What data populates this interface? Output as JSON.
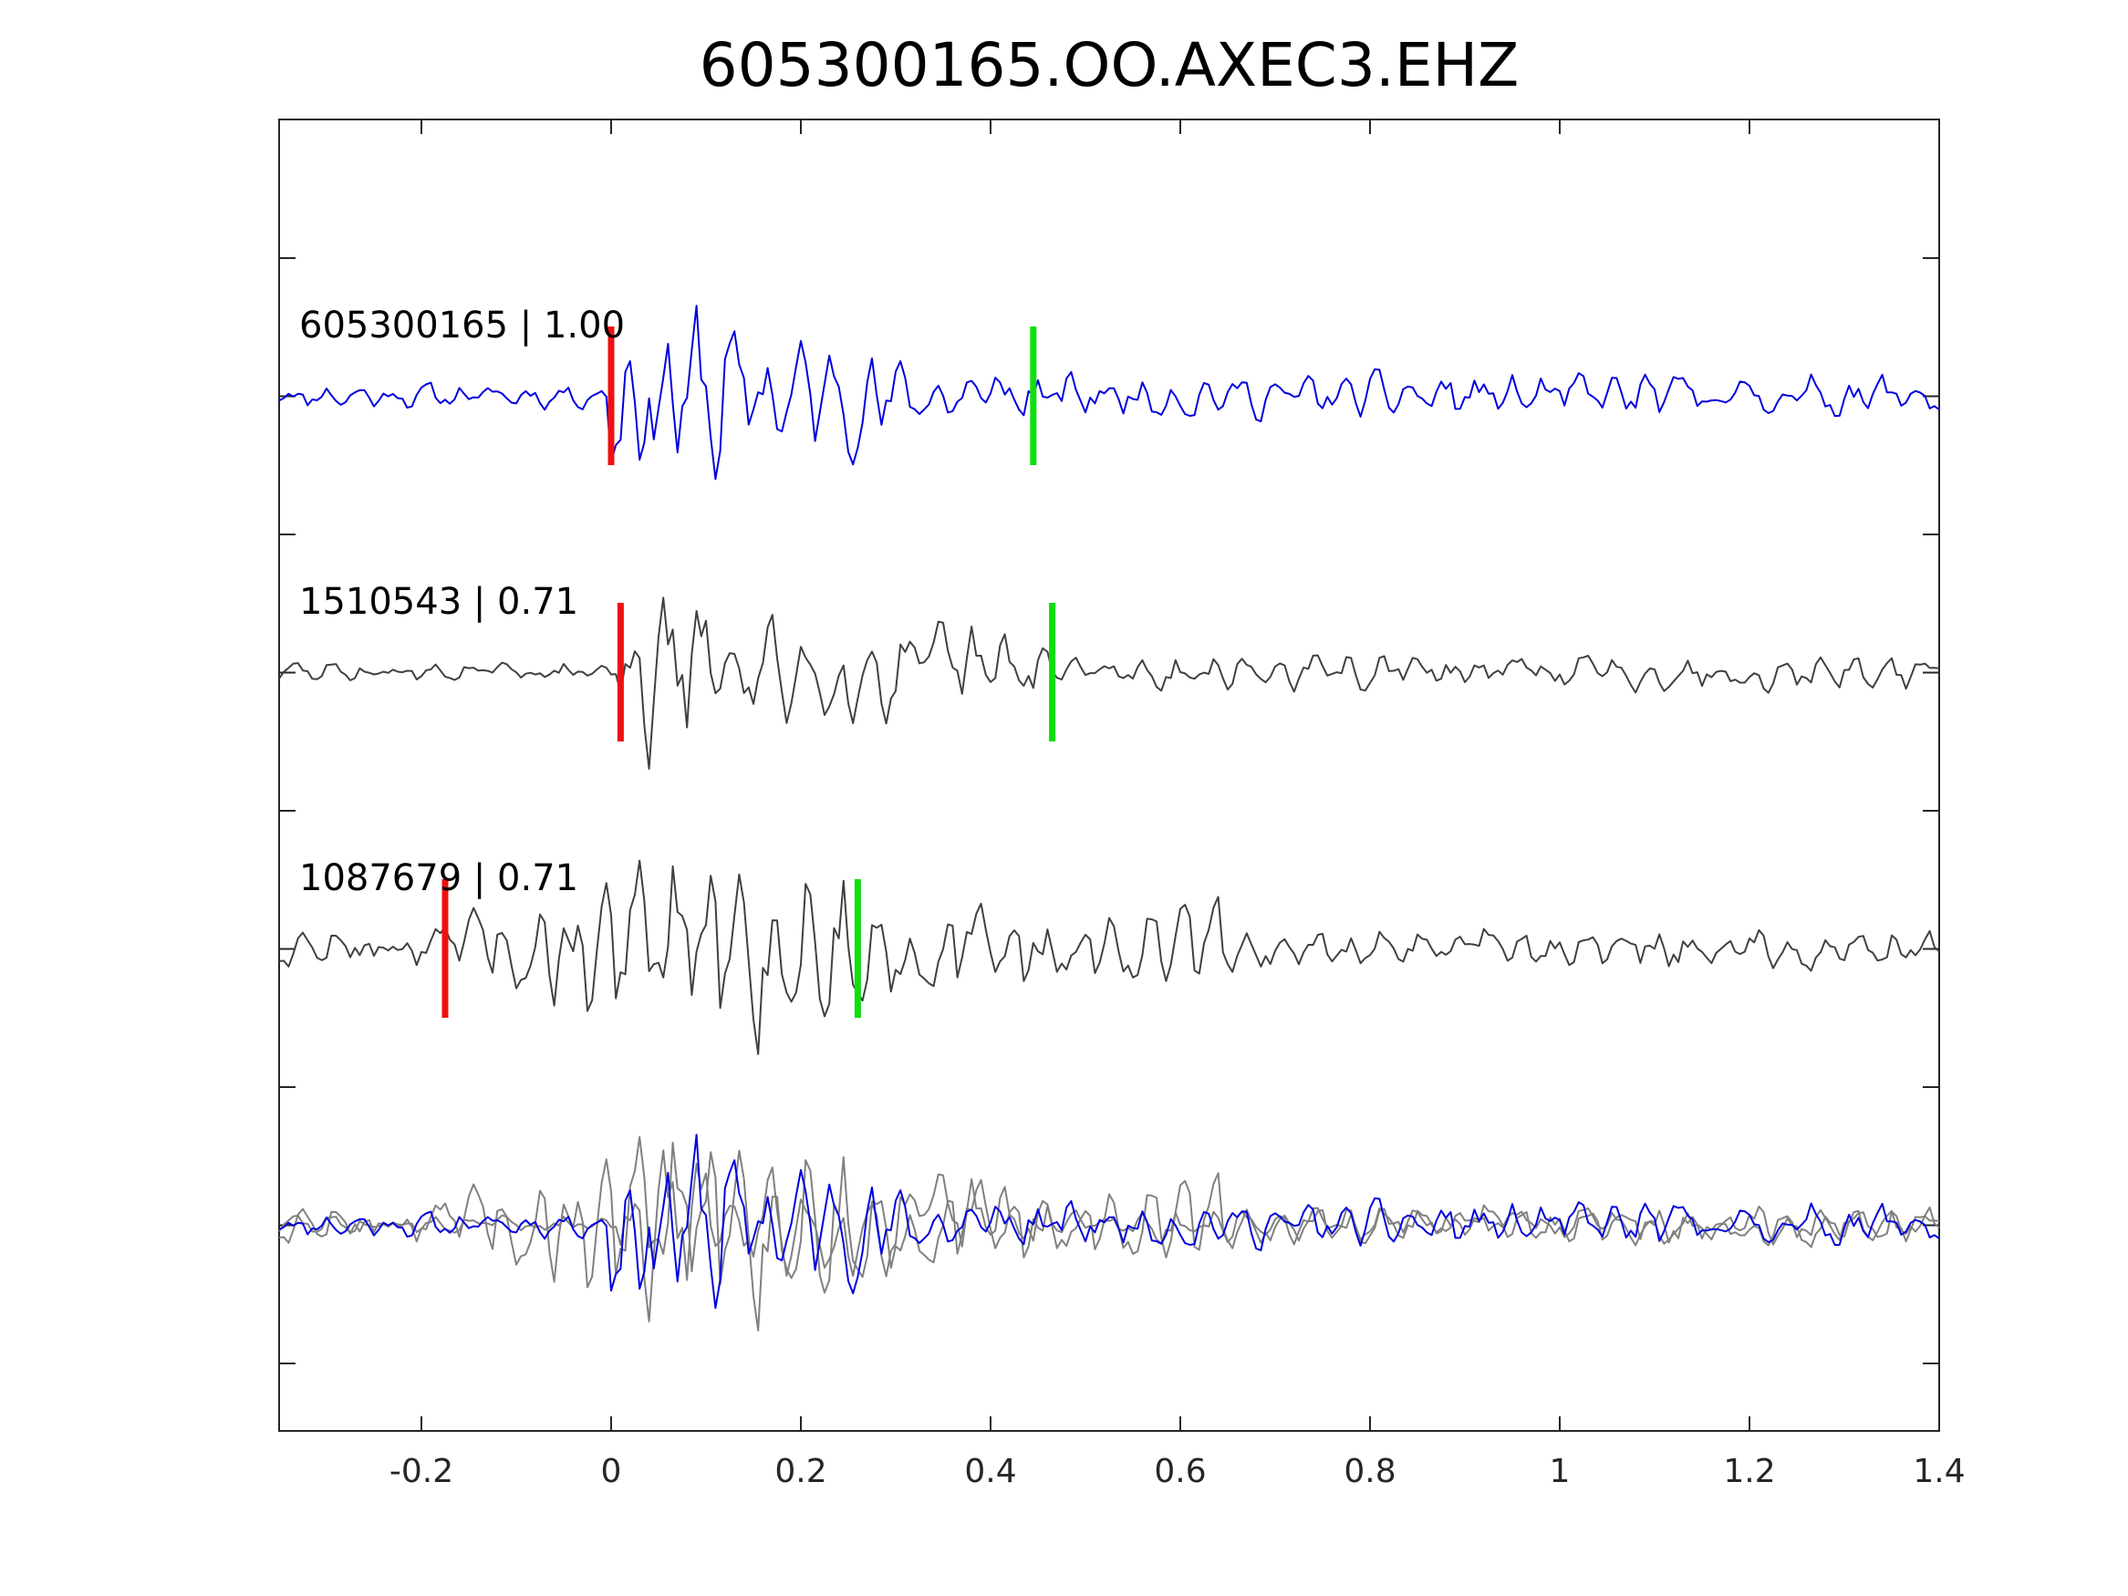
{
  "chart_data": {
    "type": "line",
    "title": "605300165.OO.AXEC3.EHZ",
    "xlabel": "",
    "ylabel": "",
    "xlim": [
      -0.35,
      1.4
    ],
    "x_ticks": [
      "-0.2",
      "0",
      "0.2",
      "0.4",
      "0.6",
      "0.8",
      "1",
      "1.2",
      "1.4"
    ],
    "x_tick_values": [
      -0.2,
      0,
      0.2,
      0.4,
      0.6,
      0.8,
      1,
      1.2,
      1.4
    ],
    "y_ticks_labeled": false,
    "grid": false,
    "colors": {
      "primary_trace": "#0000dd",
      "secondary_trace": "#404040",
      "overlay_secondary": "#808080",
      "p_pick": "#ee1111",
      "s_pick": "#11dd11",
      "axes": "#262626"
    },
    "series": [
      {
        "name": "605300165 | 1.00",
        "label": "605300165 | 1.00",
        "event": "605300165",
        "correlation": 1.0,
        "p_pick": 0.0,
        "s_pick": 0.445,
        "color": "#0000dd",
        "seed": 11,
        "start": 0.0,
        "noise": 0.12,
        "coda": [
          [
            0.0,
            0.13,
            0.9
          ],
          [
            0.13,
            0.3,
            0.55
          ],
          [
            0.3,
            0.45,
            0.35
          ],
          [
            0.45,
            1.4,
            0.22
          ]
        ]
      },
      {
        "name": "1510543 | 0.71",
        "label": "1510543 | 0.71",
        "event": "1510543",
        "correlation": 0.71,
        "p_pick": 0.01,
        "s_pick": 0.465,
        "color": "#404040",
        "seed": 29,
        "start": 0.01,
        "noise": 0.1,
        "coda": [
          [
            0.01,
            0.1,
            0.9
          ],
          [
            0.1,
            0.3,
            0.5
          ],
          [
            0.3,
            0.47,
            0.45
          ],
          [
            0.47,
            1.4,
            0.18
          ]
        ]
      },
      {
        "name": "1087679 | 0.71",
        "label": "1087679 | 0.71",
        "event": "1087679",
        "correlation": 0.71,
        "p_pick": -0.175,
        "s_pick": 0.26,
        "color": "#404040",
        "seed": 47,
        "start": -0.175,
        "noise": 0.2,
        "coda": [
          [
            -0.175,
            -0.06,
            0.45
          ],
          [
            -0.06,
            0.26,
            0.9
          ],
          [
            0.26,
            0.65,
            0.45
          ],
          [
            0.65,
            1.4,
            0.2
          ]
        ]
      }
    ],
    "overlay": {
      "description_in_plot": "",
      "members": [
        "605300165",
        "1510543",
        "1087679"
      ]
    }
  }
}
